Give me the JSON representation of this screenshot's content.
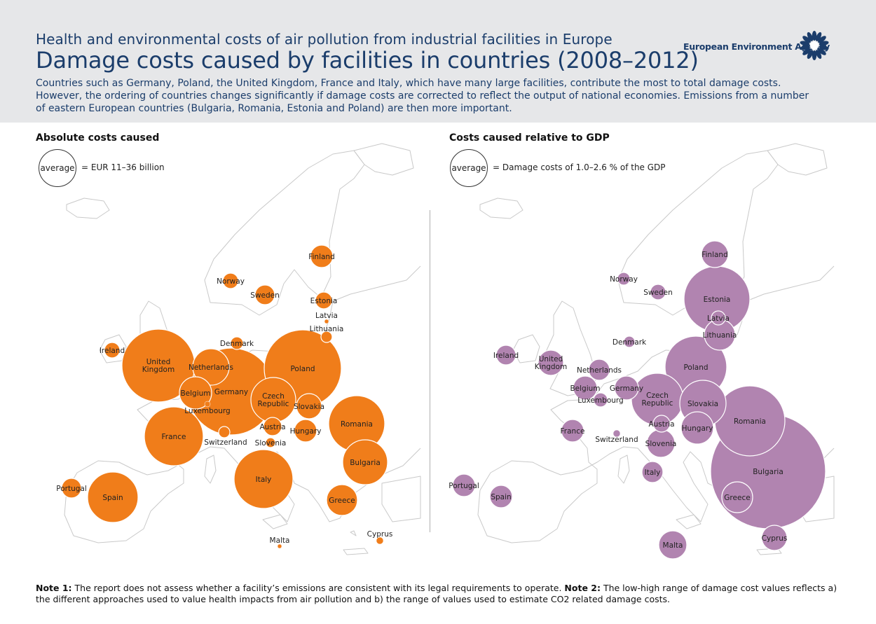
{
  "header": {
    "supertitle": "Health and environmental costs of air pollution from industrial facilities in Europe",
    "title": "Damage costs caused by facilities in countries (2008–2012)",
    "intro": "Countries such as Germany, Poland, the United Kingdom, France and Italy, which have many large facilities, contribute the most to total damage costs. However, the ordering of countries changes significantly if damage costs are corrected to reflect the output of national economies. Emissions from a number of eastern European countries (Bulgaria, Romania, Estonia and Poland) are then more important.",
    "agency": "European Environment Agency"
  },
  "colors": {
    "header_bg": "#e6e7e9",
    "title_blue": "#1b3d6b",
    "absolute_bubble": "#f07d1a",
    "relative_bubble": "#b184b0",
    "map_outline": "#c9c9c9"
  },
  "left_panel": {
    "title": "Absolute costs caused",
    "legend_circle": "average",
    "legend_text": "= EUR 11–36 billion",
    "bubbles": [
      {
        "name": "Finland",
        "label": "Finland"
      },
      {
        "name": "Norway",
        "label": "Norway"
      },
      {
        "name": "Sweden",
        "label": "Sweden"
      },
      {
        "name": "Estonia",
        "label": "Estonia"
      },
      {
        "name": "Latvia",
        "label": "Latvia"
      },
      {
        "name": "Lithuania",
        "label": "Lithuania"
      },
      {
        "name": "Denmark",
        "label": "Denmark"
      },
      {
        "name": "Ireland",
        "label": "Ireland"
      },
      {
        "name": "United Kingdom",
        "label": "United Kingdom"
      },
      {
        "name": "Germany",
        "label": "Germany"
      },
      {
        "name": "Poland",
        "label": "Poland"
      },
      {
        "name": "Netherlands",
        "label": "Netherlands"
      },
      {
        "name": "Belgium",
        "label": "Belgium"
      },
      {
        "name": "Luxembourg",
        "label": "Luxembourg"
      },
      {
        "name": "Czech Republic",
        "label": "Czech Republic"
      },
      {
        "name": "Slovakia",
        "label": "Slovakia"
      },
      {
        "name": "France",
        "label": "France"
      },
      {
        "name": "Switzerland",
        "label": "Switzerland"
      },
      {
        "name": "Austria",
        "label": "Austria"
      },
      {
        "name": "Slovenia",
        "label": "Slovenia"
      },
      {
        "name": "Hungary",
        "label": "Hungary"
      },
      {
        "name": "Romania",
        "label": "Romania"
      },
      {
        "name": "Bulgaria",
        "label": "Bulgaria"
      },
      {
        "name": "Italy",
        "label": "Italy"
      },
      {
        "name": "Portugal",
        "label": "Portugal"
      },
      {
        "name": "Spain",
        "label": "Spain"
      },
      {
        "name": "Greece",
        "label": "Greece"
      },
      {
        "name": "Malta",
        "label": "Malta"
      },
      {
        "name": "Cyprus",
        "label": "Cyprus"
      }
    ]
  },
  "right_panel": {
    "title": "Costs caused relative to GDP",
    "legend_circle": "average",
    "legend_text": "= Damage costs of 1.0–2.6 % of the GDP",
    "bubbles": [
      {
        "name": "Finland",
        "label": "Finland"
      },
      {
        "name": "Norway",
        "label": "Norway"
      },
      {
        "name": "Sweden",
        "label": "Sweden"
      },
      {
        "name": "Estonia",
        "label": "Estonia"
      },
      {
        "name": "Latvia",
        "label": "Latvia"
      },
      {
        "name": "Lithuania",
        "label": "Lithuania"
      },
      {
        "name": "Denmark",
        "label": "Denmark"
      },
      {
        "name": "Ireland",
        "label": "Ireland"
      },
      {
        "name": "United Kingdom",
        "label": "United Kingdom"
      },
      {
        "name": "Netherlands",
        "label": "Netherlands"
      },
      {
        "name": "Belgium",
        "label": "Belgium"
      },
      {
        "name": "Germany",
        "label": "Germany"
      },
      {
        "name": "Luxembourg",
        "label": "Luxembourg"
      },
      {
        "name": "Poland",
        "label": "Poland"
      },
      {
        "name": "Czech Republic",
        "label": "Czech Republic"
      },
      {
        "name": "Slovakia",
        "label": "Slovakia"
      },
      {
        "name": "France",
        "label": "France"
      },
      {
        "name": "Switzerland",
        "label": "Switzerland"
      },
      {
        "name": "Austria",
        "label": "Austria"
      },
      {
        "name": "Hungary",
        "label": "Hungary"
      },
      {
        "name": "Romania",
        "label": "Romania"
      },
      {
        "name": "Slovenia",
        "label": "Slovenia"
      },
      {
        "name": "Bulgaria",
        "label": "Bulgaria"
      },
      {
        "name": "Italy",
        "label": "Italy"
      },
      {
        "name": "Portugal",
        "label": "Portugal"
      },
      {
        "name": "Spain",
        "label": "Spain"
      },
      {
        "name": "Greece",
        "label": "Greece"
      },
      {
        "name": "Malta",
        "label": "Malta"
      },
      {
        "name": "Cyprus",
        "label": "Cyprus"
      }
    ]
  },
  "notes": {
    "note1_label": "Note 1:",
    "note1_text": " The report does not assess whether a facility’s emissions are consistent with its legal requirements to operate. ",
    "note2_label": "Note 2:",
    "note2_text": " The low-high range of damage cost values reflects a) the different approaches used to value health impacts from air pollution and b) the range of values used to estimate CO2 related damage costs."
  }
}
